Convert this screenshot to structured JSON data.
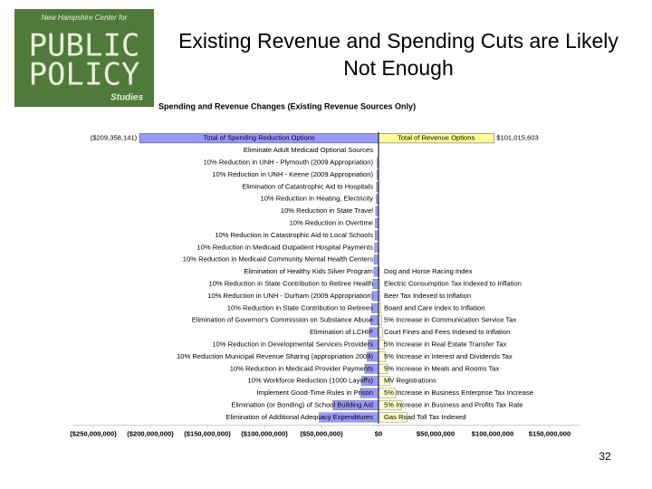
{
  "logo": {
    "top": "New Hampshire Center for",
    "line1": "PUBLIC",
    "line2": "POLICY",
    "bottom": "Studies"
  },
  "title": "Existing Revenue and Spending Cuts are Likely Not Enough",
  "page_number": "32",
  "chart_data": {
    "type": "bar",
    "orientation": "horizontal",
    "title": "Spending and Revenue Changes (Existing Revenue Sources Only)",
    "xlim": [
      -250000000,
      150000000
    ],
    "xticks": [
      {
        "value": -250000000,
        "label": "($250,000,000)"
      },
      {
        "value": -200000000,
        "label": "($200,000,000)"
      },
      {
        "value": -150000000,
        "label": "($150,000,000)"
      },
      {
        "value": -100000000,
        "label": "($100,000,000)"
      },
      {
        "value": -50000000,
        "label": "($50,000,000)"
      },
      {
        "value": 0,
        "label": "$0"
      },
      {
        "value": 50000000,
        "label": "$50,000,000"
      },
      {
        "value": 100000000,
        "label": "$100,000,000"
      },
      {
        "value": 150000000,
        "label": "$150,000,000"
      }
    ],
    "totals": [
      {
        "name": "Total of Spending Reduction Options",
        "value": -209358141,
        "value_label": "($209,358,141)",
        "color": "#9999ff"
      },
      {
        "name": "Total of Revenue Options",
        "value": 101015603,
        "value_label": "$101,015,603",
        "color": "#ffff99"
      }
    ],
    "series": [
      {
        "name": "Spending",
        "color": "#9999ff",
        "categories": [
          "Eliminate Adult Medicaid Optional Sources",
          "10% Reduction in UNH - Plymouth (2009 Appropriation)",
          "10% Reduction in UNH - Keene (2009 Appropriation)",
          "Elimination of Catastrophic Aid to Hospitals",
          "10% Reduction in Heating, Electricity",
          "10% Reduction in State Travel",
          "10% Reduction in Overtime",
          "10% Reduction in Catastrophic Aid to Local Schools",
          "10% Reduction in Medicaid Outpatient Hospital Payments",
          "10% Reduction in Medicaid Community Mental Health Centers",
          "Elimination of Healthy Kids Silver Program",
          "10% Reduction in State Contribution to Retiree Health",
          "10% Reduction in UNH - Durham (2009 Appropriation)",
          "10% Reduction in State Contribution to Retirees",
          "Elimination of Governor's Commission on Substance Abuse",
          "Elimination of LCHIP",
          "10% Reduction in Developmental Services Providers",
          "10% Reduction Municipal Revenue Sharing (appropriation 2009)",
          "10% Reduction in Medicaid Provider Payments",
          "10% Workforce Reduction (1000 Layoffs)",
          "Implement Good-Time Rules in Prison",
          "Elimination (or Bonding) of School Building Aid",
          "Elimination of Additional Adequacy Expenditures"
        ],
        "values": [
          -100000,
          -1200000,
          -1500000,
          -1800000,
          -2000000,
          -2500000,
          -2800000,
          -3000000,
          -3500000,
          -4000000,
          -4000000,
          -5000000,
          -5500000,
          -6000000,
          -7000000,
          -8000000,
          -9000000,
          -10000000,
          -12000000,
          -15000000,
          -16000000,
          -40000000,
          -52000000
        ]
      },
      {
        "name": "Revenue",
        "color": "#ffffcc",
        "categories": [
          "Dog and Horse Racing Index",
          "Electric Consumption Tax Indexed to Inflation",
          "Beer Tax Indexed to Inflation",
          "Board and Care Index to Inflation",
          "5% Increase in Communication Service Tax",
          "Court Fines and Fees Indexed to Inflation",
          "5% Increase in Real Estate Transfer Tax",
          "5% Increase in Interest and Dividends Tax",
          "5% Increase in Meals and Rooms Tax",
          "MV Registrations",
          "5% Increase in Business Enterprise Tax Increase",
          "5% Increase in Business and Profits Tax Rate",
          "Gas Road Toll Tax Indexed"
        ],
        "values": [
          500000,
          1000000,
          1500000,
          2000000,
          3000000,
          3500000,
          5000000,
          6000000,
          8000000,
          10000000,
          15000000,
          20000000,
          25000000
        ]
      }
    ]
  }
}
